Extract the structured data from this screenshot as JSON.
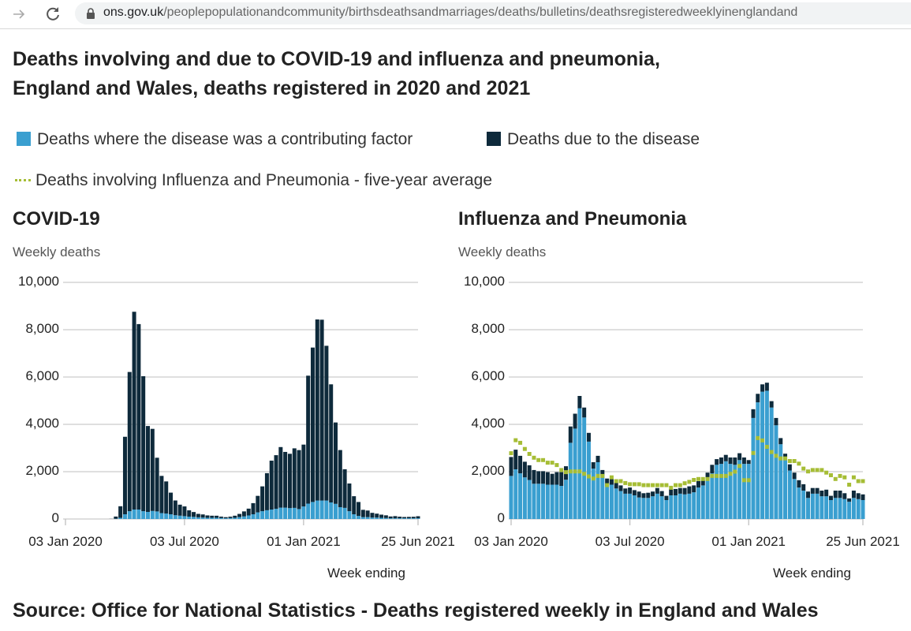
{
  "browser": {
    "url_domain": "ons.gov.uk",
    "url_path": "/peoplepopulationandcommunity/birthsdeathsandmarriages/deaths/bulletins/deathsregisteredweeklyinenglandand",
    "icons": [
      "forward-arrow-icon",
      "reload-icon",
      "lock-icon"
    ]
  },
  "title_line1": "Deaths involving and due to COVID-19 and influenza and pneumonia,",
  "title_line2": "England and Wales, deaths registered in 2020 and 2021",
  "legend": {
    "contributing": "Deaths where the disease was a contributing factor",
    "due": "Deaths due to the disease",
    "average": "Deaths involving Influenza and Pneumonia - five-year average",
    "placement": "top"
  },
  "colors": {
    "contributing": "#3a9fd0",
    "due": "#0e2a3b",
    "average": "#a6bd35",
    "grid": "#cccccc"
  },
  "source": "Source: Office for National Statistics - Deaths registered weekly in England and Wales",
  "chart_data": [
    {
      "type": "bar",
      "stacked": true,
      "title": "COVID-19",
      "ylabel": "Weekly deaths",
      "xlabel": "Week ending",
      "ylim": [
        0,
        10000
      ],
      "yticks": [
        "0",
        "2,000",
        "4,000",
        "6,000",
        "8,000",
        "10,000"
      ],
      "ytick_values": [
        0,
        2000,
        4000,
        6000,
        8000,
        10000
      ],
      "xticks": [
        "03 Jan 2020",
        "03 Jul 2020",
        "01 Jan 2021",
        "25 Jun 2021"
      ],
      "xtick_dates": [
        "2020-01-03",
        "2020-07-03",
        "2021-01-01",
        "2021-06-25"
      ],
      "grid": true,
      "week_ending": [
        "2020-01-03",
        "2020-01-10",
        "2020-01-17",
        "2020-01-24",
        "2020-01-31",
        "2020-02-07",
        "2020-02-14",
        "2020-02-21",
        "2020-02-28",
        "2020-03-06",
        "2020-03-13",
        "2020-03-20",
        "2020-03-27",
        "2020-04-03",
        "2020-04-10",
        "2020-04-17",
        "2020-04-24",
        "2020-05-01",
        "2020-05-08",
        "2020-05-15",
        "2020-05-22",
        "2020-05-29",
        "2020-06-05",
        "2020-06-12",
        "2020-06-19",
        "2020-06-26",
        "2020-07-03",
        "2020-07-10",
        "2020-07-17",
        "2020-07-24",
        "2020-07-31",
        "2020-08-07",
        "2020-08-14",
        "2020-08-21",
        "2020-08-28",
        "2020-09-04",
        "2020-09-11",
        "2020-09-18",
        "2020-09-25",
        "2020-10-02",
        "2020-10-09",
        "2020-10-16",
        "2020-10-23",
        "2020-10-30",
        "2020-11-06",
        "2020-11-13",
        "2020-11-20",
        "2020-11-27",
        "2020-12-04",
        "2020-12-11",
        "2020-12-18",
        "2020-12-25",
        "2021-01-01",
        "2021-01-08",
        "2021-01-15",
        "2021-01-22",
        "2021-01-29",
        "2021-02-05",
        "2021-02-12",
        "2021-02-19",
        "2021-02-26",
        "2021-03-05",
        "2021-03-12",
        "2021-03-19",
        "2021-03-26",
        "2021-04-02",
        "2021-04-09",
        "2021-04-16",
        "2021-04-23",
        "2021-04-30",
        "2021-05-07",
        "2021-05-14",
        "2021-05-21",
        "2021-05-28",
        "2021-06-04",
        "2021-06-11",
        "2021-06-18",
        "2021-06-25"
      ],
      "series": [
        {
          "name": "Deaths where the disease was a contributing factor",
          "values": [
            0,
            0,
            0,
            0,
            0,
            0,
            0,
            0,
            0,
            0,
            0,
            10,
            50,
            200,
            330,
            400,
            400,
            330,
            300,
            340,
            320,
            250,
            230,
            200,
            160,
            140,
            120,
            100,
            90,
            70,
            60,
            50,
            50,
            50,
            40,
            30,
            40,
            50,
            80,
            110,
            150,
            200,
            280,
            330,
            370,
            400,
            430,
            480,
            480,
            460,
            470,
            420,
            530,
            650,
            720,
            780,
            780,
            780,
            700,
            640,
            500,
            470,
            330,
            200,
            130,
            80,
            80,
            60,
            60,
            50,
            40,
            30,
            30,
            30,
            30,
            30,
            30,
            30
          ]
        },
        {
          "name": "Deaths due to the disease",
          "values": [
            0,
            0,
            0,
            0,
            0,
            0,
            0,
            0,
            0,
            0,
            5,
            93,
            489,
            3275,
            5883,
            8358,
            7837,
            5705,
            3630,
            3470,
            2269,
            1572,
            1358,
            914,
            623,
            466,
            412,
            266,
            205,
            147,
            133,
            102,
            89,
            88,
            61,
            48,
            59,
            89,
            135,
            211,
            288,
            470,
            698,
            1049,
            1567,
            2066,
            2267,
            2560,
            2355,
            2296,
            2516,
            2492,
            2614,
            5407,
            6525,
            7653,
            7642,
            6540,
            4991,
            3439,
            2414,
            1632,
            1171,
            763,
            589,
            308,
            278,
            200,
            166,
            134,
            115,
            77,
            91,
            68,
            54,
            60,
            65,
            87
          ]
        }
      ]
    },
    {
      "type": "bar",
      "stacked": true,
      "title": "Influenza and Pneumonia",
      "ylabel": "Weekly deaths",
      "xlabel": "Week ending",
      "ylim": [
        0,
        10000
      ],
      "yticks": [
        "0",
        "2,000",
        "4,000",
        "6,000",
        "8,000",
        "10,000"
      ],
      "ytick_values": [
        0,
        2000,
        4000,
        6000,
        8000,
        10000
      ],
      "xticks": [
        "03 Jan 2020",
        "03 Jul 2020",
        "01 Jan 2021",
        "25 Jun 2021"
      ],
      "xtick_dates": [
        "2020-01-03",
        "2020-07-03",
        "2021-01-01",
        "2021-06-25"
      ],
      "grid": true,
      "week_ending": [
        "2020-01-03",
        "2020-01-10",
        "2020-01-17",
        "2020-01-24",
        "2020-01-31",
        "2020-02-07",
        "2020-02-14",
        "2020-02-21",
        "2020-02-28",
        "2020-03-06",
        "2020-03-13",
        "2020-03-20",
        "2020-03-27",
        "2020-04-03",
        "2020-04-10",
        "2020-04-17",
        "2020-04-24",
        "2020-05-01",
        "2020-05-08",
        "2020-05-15",
        "2020-05-22",
        "2020-05-29",
        "2020-06-05",
        "2020-06-12",
        "2020-06-19",
        "2020-06-26",
        "2020-07-03",
        "2020-07-10",
        "2020-07-17",
        "2020-07-24",
        "2020-07-31",
        "2020-08-07",
        "2020-08-14",
        "2020-08-21",
        "2020-08-28",
        "2020-09-04",
        "2020-09-11",
        "2020-09-18",
        "2020-09-25",
        "2020-10-02",
        "2020-10-09",
        "2020-10-16",
        "2020-10-23",
        "2020-10-30",
        "2020-11-06",
        "2020-11-13",
        "2020-11-20",
        "2020-11-27",
        "2020-12-04",
        "2020-12-11",
        "2020-12-18",
        "2020-12-25",
        "2021-01-01",
        "2021-01-08",
        "2021-01-15",
        "2021-01-22",
        "2021-01-29",
        "2021-02-05",
        "2021-02-12",
        "2021-02-19",
        "2021-02-26",
        "2021-03-05",
        "2021-03-12",
        "2021-03-19",
        "2021-03-26",
        "2021-04-02",
        "2021-04-09",
        "2021-04-16",
        "2021-04-23",
        "2021-04-30",
        "2021-05-07",
        "2021-05-14",
        "2021-05-21",
        "2021-05-28",
        "2021-06-04",
        "2021-06-11",
        "2021-06-18",
        "2021-06-25"
      ],
      "series": [
        {
          "name": "Deaths where the disease was a contributing factor",
          "values": [
            1820,
            2100,
            1930,
            1760,
            1650,
            1490,
            1490,
            1490,
            1450,
            1450,
            1450,
            1400,
            1660,
            3220,
            3820,
            4680,
            4290,
            3270,
            2130,
            2400,
            1840,
            1380,
            1450,
            1290,
            1180,
            1070,
            1070,
            1000,
            910,
            890,
            890,
            960,
            1070,
            960,
            800,
            1000,
            1000,
            1070,
            1040,
            1070,
            1130,
            1330,
            1420,
            1670,
            1930,
            2290,
            2330,
            2440,
            2330,
            2290,
            2490,
            2330,
            2330,
            4270,
            4930,
            5380,
            5420,
            4710,
            3960,
            3160,
            2600,
            2050,
            1690,
            1330,
            1200,
            890,
            1070,
            1070,
            960,
            960,
            800,
            890,
            890,
            840,
            730,
            890,
            840,
            800
          ]
        },
        {
          "name": "Deaths due to the disease",
          "values": [
            800,
            830,
            740,
            660,
            620,
            580,
            530,
            530,
            530,
            460,
            530,
            580,
            570,
            690,
            630,
            520,
            420,
            370,
            270,
            270,
            230,
            330,
            240,
            240,
            240,
            220,
            260,
            220,
            250,
            200,
            220,
            200,
            240,
            220,
            180,
            270,
            270,
            240,
            270,
            310,
            290,
            270,
            220,
            290,
            360,
            240,
            270,
            270,
            270,
            310,
            290,
            270,
            160,
            370,
            360,
            310,
            340,
            270,
            310,
            260,
            160,
            260,
            270,
            310,
            270,
            270,
            240,
            240,
            240,
            280,
            180,
            310,
            310,
            250,
            140,
            310,
            250,
            240
          ]
        },
        {
          "name": "Deaths involving Influenza and Pneumonia - five-year average",
          "type": "dotted-line",
          "values": [
            2780,
            3330,
            3220,
            2960,
            2750,
            2590,
            2490,
            2490,
            2380,
            2380,
            2280,
            2070,
            1980,
            2010,
            2010,
            2010,
            1910,
            1800,
            1710,
            1820,
            1820,
            1430,
            1760,
            1600,
            1600,
            1520,
            1470,
            1470,
            1470,
            1430,
            1430,
            1430,
            1430,
            1430,
            1430,
            1320,
            1430,
            1430,
            1510,
            1570,
            1650,
            1690,
            1690,
            1690,
            1820,
            1820,
            1820,
            1820,
            1910,
            2000,
            2240,
            1640,
            1640,
            2790,
            3420,
            3320,
            3050,
            2830,
            2670,
            2560,
            2560,
            2450,
            2450,
            2340,
            2130,
            2010,
            2070,
            2070,
            2070,
            1960,
            1850,
            1690,
            1820,
            1760,
            1450,
            1760,
            1600,
            1600
          ]
        }
      ]
    }
  ]
}
